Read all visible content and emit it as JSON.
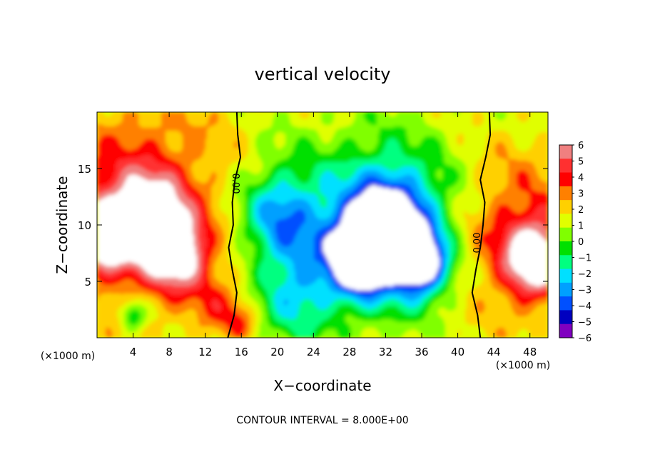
{
  "chart_data": {
    "type": "heatmap",
    "title": "vertical velocity",
    "xlabel": "X−coordinate",
    "ylabel": "Z−coordinate",
    "x_unit": "(×1000 m)",
    "x_unit_right": "(×1000 m)",
    "xlim": [
      0,
      50
    ],
    "ylim": [
      0,
      20
    ],
    "x_ticks": [
      4,
      8,
      12,
      16,
      20,
      24,
      28,
      32,
      36,
      40,
      44,
      48
    ],
    "y_ticks": [
      5,
      10,
      15
    ],
    "colorbar": {
      "ticks": [
        6,
        5,
        4,
        3,
        2,
        1,
        0,
        -1,
        -2,
        -3,
        -4,
        -5,
        -6
      ],
      "tick_labels": [
        "6",
        "5",
        "4",
        "3",
        "2",
        "1",
        "0",
        "−1",
        "−2",
        "−3",
        "−4",
        "−5",
        "−6"
      ],
      "colors": [
        "#f08080",
        "#ff3030",
        "#ff0000",
        "#ff8000",
        "#ffd000",
        "#e0ff00",
        "#80ff00",
        "#00e000",
        "#00ff80",
        "#00e0ff",
        "#00a0ff",
        "#0050ff",
        "#0000c0",
        "#8000c0"
      ]
    },
    "contour_labels": [
      "0.00",
      "0.00"
    ],
    "footer": "CONTOUR INTERVAL = 8.000E+00",
    "field_blobs": [
      {
        "x": 5.5,
        "z": 12.0,
        "r": 9.5,
        "v": 2.8
      },
      {
        "x": 1.5,
        "z": 10.0,
        "r": 5.0,
        "v": 2.5
      },
      {
        "x": 47.0,
        "z": 9.0,
        "r": 7.0,
        "v": 3.0
      },
      {
        "x": 13.5,
        "z": 3.0,
        "r": 3.0,
        "v": 2.0
      },
      {
        "x": 16.0,
        "z": 1.5,
        "r": 1.8,
        "v": 2.0
      },
      {
        "x": 6.0,
        "z": 10.5,
        "r": 3.5,
        "v": 6.5
      },
      {
        "x": 9.0,
        "z": 7.5,
        "r": 3.0,
        "v": 6.5
      },
      {
        "x": 1.0,
        "z": 9.0,
        "r": 2.5,
        "v": 6.5
      },
      {
        "x": 48.5,
        "z": 7.0,
        "r": 3.0,
        "v": 6.5
      },
      {
        "x": 24.0,
        "z": 8.5,
        "r": 7.5,
        "v": -2.8
      },
      {
        "x": 33.0,
        "z": 10.5,
        "r": 7.5,
        "v": -3.5
      },
      {
        "x": 20.0,
        "z": 11.0,
        "r": 4.0,
        "v": -3.5
      },
      {
        "x": 22.0,
        "z": 3.5,
        "r": 4.0,
        "v": -2.5
      },
      {
        "x": 32.5,
        "z": 9.5,
        "r": 4.5,
        "v": -7.0
      },
      {
        "x": 29.0,
        "z": 7.0,
        "r": 3.0,
        "v": -7.0
      },
      {
        "x": 36.0,
        "z": 6.5,
        "r": 2.8,
        "v": -6.5
      },
      {
        "x": 4.0,
        "z": 2.0,
        "r": 1.4,
        "v": -3.5
      }
    ],
    "contour_lines": [
      {
        "style": "solid",
        "z": [
          0,
          2,
          4,
          6,
          8,
          10,
          12,
          14,
          16,
          18,
          20
        ],
        "x": [
          14.5,
          15.2,
          15.5,
          15.0,
          14.6,
          15.1,
          15.0,
          15.3,
          15.9,
          15.6,
          15.5
        ]
      },
      {
        "style": "solid",
        "z": [
          0,
          2,
          4,
          6,
          8,
          10,
          12,
          14,
          16,
          18,
          20
        ],
        "x": [
          42.5,
          42.2,
          41.6,
          42.0,
          42.5,
          42.8,
          43.0,
          42.5,
          43.1,
          43.6,
          43.5
        ]
      }
    ]
  }
}
